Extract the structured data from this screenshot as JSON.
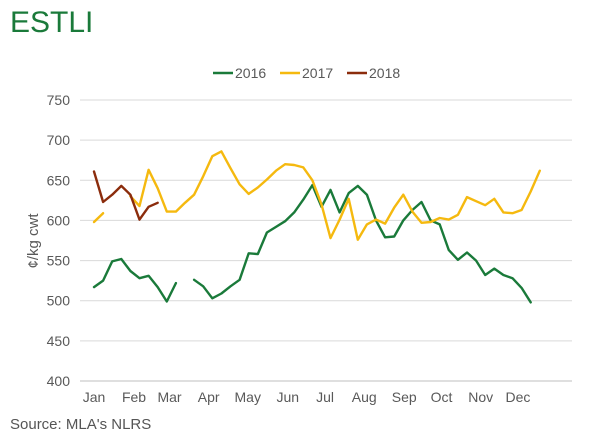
{
  "title": "ESTLI",
  "source": "Source: MLA's NLRS",
  "chart_data": {
    "type": "line",
    "title": "ESTLI",
    "ylabel": "¢/kg cwt",
    "xlabel": "",
    "ylim": [
      400,
      750
    ],
    "yticks": [
      400,
      450,
      500,
      550,
      600,
      650,
      700,
      750
    ],
    "xlim": [
      1,
      52
    ],
    "xticks": [
      {
        "label": "Jan",
        "week": 1
      },
      {
        "label": "Feb",
        "week": 5.4
      },
      {
        "label": "Mar",
        "week": 9.3
      },
      {
        "label": "Apr",
        "week": 13.6
      },
      {
        "label": "May",
        "week": 17.9
      },
      {
        "label": "Jun",
        "week": 22.3
      },
      {
        "label": "Jul",
        "week": 26.4
      },
      {
        "label": "Aug",
        "week": 30.7
      },
      {
        "label": "Sep",
        "week": 35.1
      },
      {
        "label": "Oct",
        "week": 39.2
      },
      {
        "label": "Nov",
        "week": 43.5
      },
      {
        "label": "Dec",
        "week": 47.6
      }
    ],
    "grid": true,
    "legend": "top",
    "series": [
      {
        "name": "2016",
        "color": "#1a7a3a",
        "points": [
          [
            1,
            517
          ],
          [
            2,
            525
          ],
          [
            3,
            549
          ],
          [
            4,
            552
          ],
          [
            5,
            537
          ],
          [
            6,
            528
          ],
          [
            7,
            531
          ],
          [
            8,
            517
          ],
          [
            9,
            499
          ],
          [
            10,
            522
          ],
          null,
          [
            12,
            526
          ],
          [
            13,
            518
          ],
          [
            14,
            503
          ],
          [
            15,
            509
          ],
          [
            16,
            518
          ],
          [
            17,
            526
          ],
          [
            18,
            559
          ],
          [
            19,
            558
          ],
          [
            20,
            585
          ],
          [
            21,
            592
          ],
          [
            22,
            599
          ],
          [
            23,
            610
          ],
          [
            24,
            626
          ],
          [
            25,
            644
          ],
          [
            26,
            617
          ],
          [
            27,
            638
          ],
          [
            28,
            610
          ],
          [
            29,
            634
          ],
          [
            30,
            643
          ],
          [
            31,
            632
          ],
          [
            32,
            600
          ],
          [
            33,
            579
          ],
          [
            34,
            580
          ],
          [
            35,
            600
          ],
          [
            36,
            613
          ],
          [
            37,
            623
          ],
          [
            38,
            600
          ],
          [
            39,
            595
          ],
          [
            40,
            563
          ],
          [
            41,
            551
          ],
          [
            42,
            560
          ],
          [
            43,
            550
          ],
          [
            44,
            532
          ],
          [
            45,
            540
          ],
          [
            46,
            532
          ],
          [
            47,
            528
          ],
          [
            48,
            516
          ],
          [
            49,
            498
          ]
        ]
      },
      {
        "name": "2017",
        "color": "#f5b90f",
        "points": [
          [
            1,
            598
          ],
          [
            2,
            609
          ],
          null,
          [
            5,
            630
          ],
          [
            6,
            618
          ],
          [
            7,
            663
          ],
          [
            8,
            640
          ],
          [
            9,
            611
          ],
          [
            10,
            611
          ],
          [
            11,
            622
          ],
          [
            12,
            632
          ],
          [
            13,
            655
          ],
          [
            14,
            680
          ],
          [
            15,
            686
          ],
          [
            16,
            665
          ],
          [
            17,
            645
          ],
          [
            18,
            633
          ],
          [
            19,
            641
          ],
          [
            20,
            651
          ],
          [
            21,
            662
          ],
          [
            22,
            670
          ],
          [
            23,
            669
          ],
          [
            24,
            666
          ],
          [
            25,
            650
          ],
          [
            26,
            620
          ],
          [
            27,
            578
          ],
          [
            28,
            601
          ],
          [
            29,
            627
          ],
          [
            30,
            576
          ],
          [
            31,
            595
          ],
          [
            32,
            601
          ],
          [
            33,
            596
          ],
          [
            34,
            616
          ],
          [
            35,
            632
          ],
          [
            36,
            611
          ],
          [
            37,
            597
          ],
          [
            38,
            598
          ],
          [
            39,
            603
          ],
          [
            40,
            601
          ],
          [
            41,
            607
          ],
          [
            42,
            629
          ],
          [
            43,
            624
          ],
          [
            44,
            619
          ],
          [
            45,
            627
          ],
          [
            46,
            610
          ],
          [
            47,
            609
          ],
          [
            48,
            613
          ],
          [
            49,
            636
          ],
          [
            50,
            662
          ]
        ]
      },
      {
        "name": "2018",
        "color": "#8b2c0c",
        "points": [
          [
            1,
            661
          ],
          [
            2,
            623
          ],
          [
            3,
            632
          ],
          [
            4,
            643
          ],
          [
            5,
            632
          ],
          [
            6,
            601
          ],
          [
            7,
            617
          ],
          [
            8,
            622
          ]
        ]
      }
    ]
  }
}
